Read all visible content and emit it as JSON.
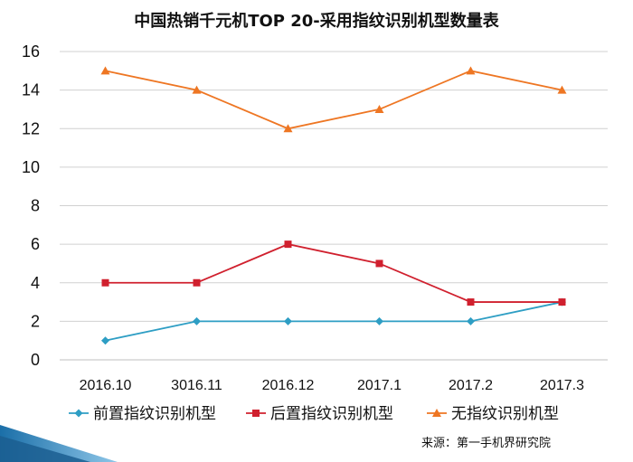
{
  "chart_data": {
    "type": "line",
    "title": "中国热销千元机TOP  20-采用指纹识别机型数量表",
    "categories": [
      "2016.10",
      "3016.11",
      "2016.12",
      "2017.1",
      "2017.2",
      "2017.3"
    ],
    "ylim": [
      0,
      16
    ],
    "yticks": [
      "0",
      "2",
      "4",
      "6",
      "8",
      "10",
      "12",
      "14",
      "16"
    ],
    "grid": true,
    "legend_position": "bottom",
    "series": [
      {
        "name": "前置指纹识别机型",
        "values": [
          1,
          2,
          2,
          2,
          2,
          3
        ],
        "color": "#2E9EC4",
        "marker": "diamond"
      },
      {
        "name": "后置指纹识别机型",
        "values": [
          4,
          4,
          6,
          5,
          3,
          3
        ],
        "color": "#D0202E",
        "marker": "square"
      },
      {
        "name": "无指纹识别机型",
        "values": [
          15,
          14,
          12,
          13,
          15,
          14
        ],
        "color": "#EE7623",
        "marker": "triangle"
      }
    ]
  },
  "source": "来源：第一手机界研究院",
  "decoration": {
    "corner_color": "#2E8BC0"
  }
}
